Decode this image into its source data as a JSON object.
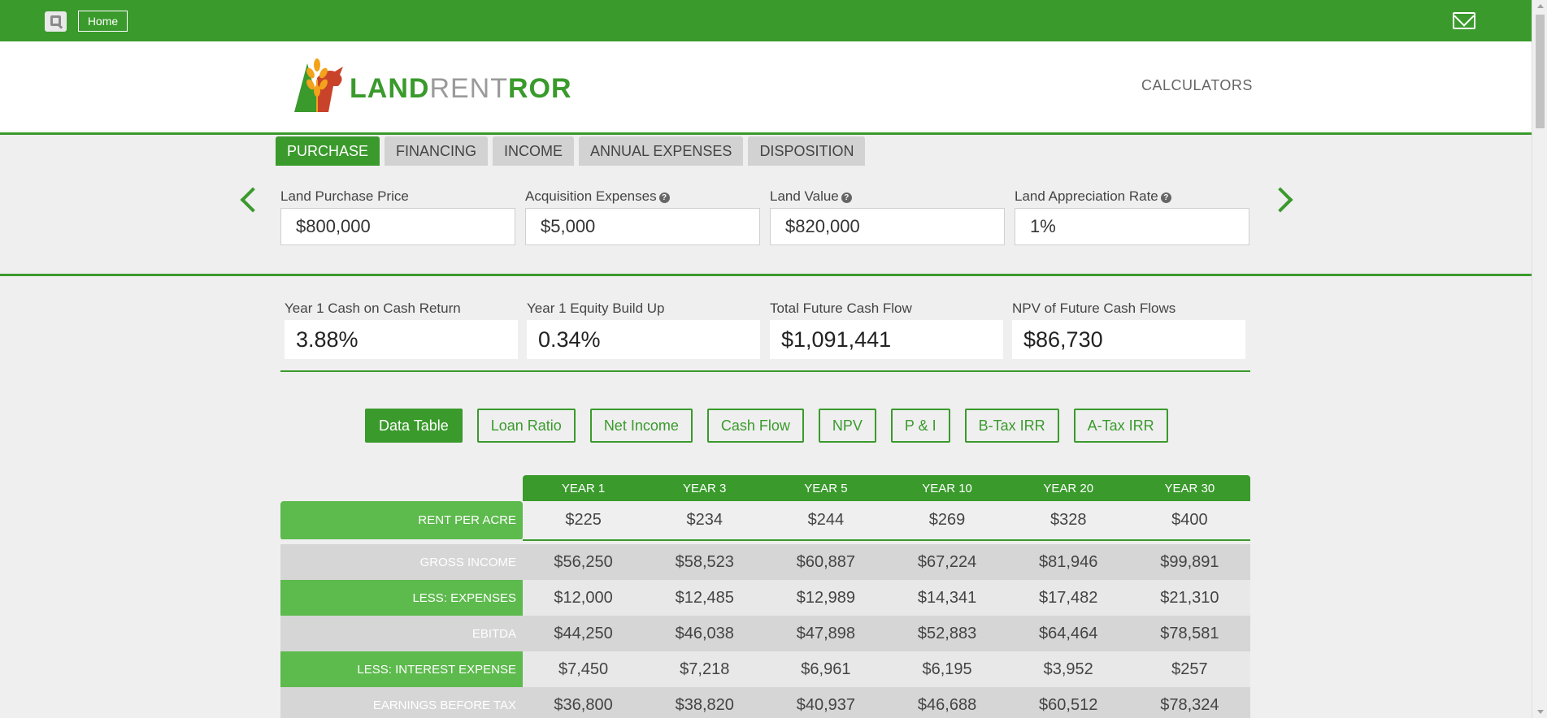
{
  "topbar": {
    "home_label": "Home",
    "left_icon": "iq-logo-icon",
    "right_icon": "mail-icon"
  },
  "header": {
    "logo_part1": "LAND",
    "logo_part2": "RENT",
    "logo_part3": "ROR",
    "nav_link": "CALCULATORS"
  },
  "tabs": [
    "PURCHASE",
    "FINANCING",
    "INCOME",
    "ANNUAL EXPENSES",
    "DISPOSITION"
  ],
  "active_tab": "PURCHASE",
  "inputs": [
    {
      "label": "Land Purchase Price",
      "value": "$800,000",
      "help": false
    },
    {
      "label": "Acquisition Expenses",
      "value": "$5,000",
      "help": true
    },
    {
      "label": "Land Value",
      "value": "$820,000",
      "help": true
    },
    {
      "label": "Land Appreciation Rate",
      "value": "1%",
      "help": true
    }
  ],
  "kpis": [
    {
      "label": "Year 1 Cash on Cash Return",
      "value": "3.88%"
    },
    {
      "label": "Year 1 Equity Build Up",
      "value": "0.34%"
    },
    {
      "label": "Total Future Cash Flow",
      "value": "$1,091,441"
    },
    {
      "label": "NPV of Future Cash Flows",
      "value": "$86,730"
    }
  ],
  "chart_buttons": [
    "Data Table",
    "Loan Ratio",
    "Net Income",
    "Cash Flow",
    "NPV",
    "P & I",
    "B-Tax IRR",
    "A-Tax IRR"
  ],
  "table": {
    "columns": [
      "YEAR 1",
      "YEAR 3",
      "YEAR 5",
      "YEAR 10",
      "YEAR 20",
      "YEAR 30"
    ],
    "rows": [
      {
        "label": "RENT PER ACRE",
        "values": [
          "$225",
          "$234",
          "$244",
          "$269",
          "$328",
          "$400"
        ]
      },
      {
        "label": "GROSS INCOME",
        "values": [
          "$56,250",
          "$58,523",
          "$60,887",
          "$67,224",
          "$81,946",
          "$99,891"
        ]
      },
      {
        "label": "LESS: EXPENSES",
        "values": [
          "$12,000",
          "$12,485",
          "$12,989",
          "$14,341",
          "$17,482",
          "$21,310"
        ]
      },
      {
        "label": "EBITDA",
        "values": [
          "$44,250",
          "$46,038",
          "$47,898",
          "$52,883",
          "$64,464",
          "$78,581"
        ]
      },
      {
        "label": "LESS: INTEREST EXPENSE",
        "values": [
          "$7,450",
          "$7,218",
          "$6,961",
          "$6,195",
          "$3,952",
          "$257"
        ]
      },
      {
        "label": "EARNINGS BEFORE TAX",
        "values": [
          "$36,800",
          "$38,820",
          "$40,937",
          "$46,688",
          "$60,512",
          "$78,324"
        ]
      }
    ]
  },
  "colors": {
    "brand_green": "#3a9a2c",
    "light_green": "#5dba4d",
    "orange": "#f3a21b",
    "red": "#c9432a"
  }
}
